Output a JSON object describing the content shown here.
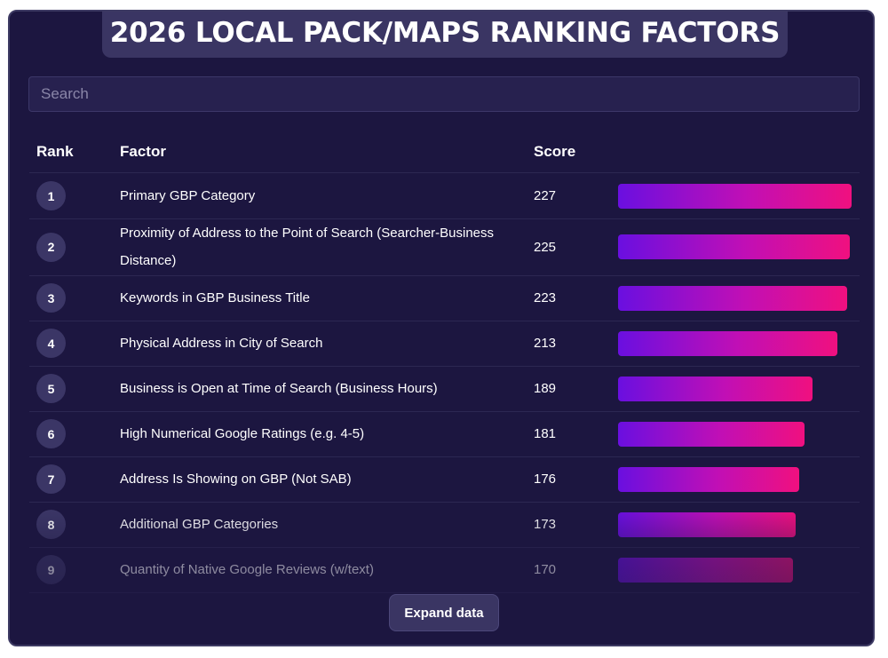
{
  "title": "2026 LOCAL PACK/MAPS RANKING FACTORS",
  "search": {
    "placeholder": "Search",
    "value": ""
  },
  "table": {
    "headers": {
      "rank": "Rank",
      "factor": "Factor",
      "score": "Score"
    },
    "max_score": 227,
    "rows": [
      {
        "rank": "1",
        "factor": "Primary GBP Category",
        "score": 227
      },
      {
        "rank": "2",
        "factor": "Proximity of Address to the Point of Search (Searcher-Business Distance)",
        "score": 225
      },
      {
        "rank": "3",
        "factor": "Keywords in GBP Business Title",
        "score": 223
      },
      {
        "rank": "4",
        "factor": "Physical Address in City of Search",
        "score": 213
      },
      {
        "rank": "5",
        "factor": "Business is Open at Time of Search (Business Hours)",
        "score": 189
      },
      {
        "rank": "6",
        "factor": "High Numerical Google Ratings (e.g. 4-5)",
        "score": 181
      },
      {
        "rank": "7",
        "factor": "Address Is Showing on GBP (Not SAB)",
        "score": 176
      },
      {
        "rank": "8",
        "factor": "Additional GBP Categories",
        "score": 173
      },
      {
        "rank": "9",
        "factor": "Quantity of Native Google Reviews (w/text)",
        "score": 170
      }
    ]
  },
  "expand_button": {
    "label": "Expand data"
  },
  "colors": {
    "background": "#1c1640",
    "panel": "#3a3563",
    "bar_gradient_start": "#6a0fe0",
    "bar_gradient_end": "#f0107f",
    "text": "#ffffff"
  }
}
